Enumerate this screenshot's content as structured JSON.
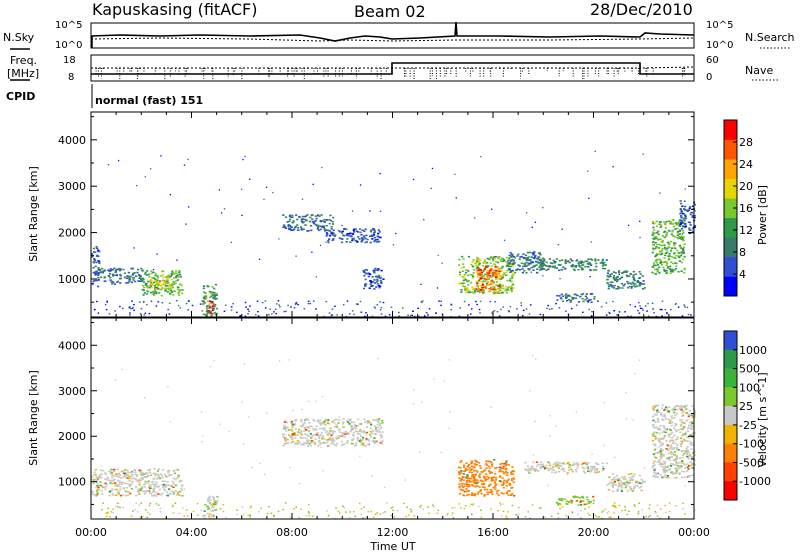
{
  "header": {
    "title": "Kapuskasing (fitACF)",
    "beam": "Beam 02",
    "date": "28/Dec/2010"
  },
  "strip_labels": {
    "nsky": "N.Sky",
    "nsky_top": "10^5",
    "nsky_bottom": "10^0",
    "nsearch": "N.Search",
    "nsearch_top": "10^5",
    "nsearch_bottom": "10^0",
    "freq_line1": "Freq.",
    "freq_line2": "[MHz]",
    "freq_top": "18",
    "freq_bottom": "8",
    "nave": "Nave",
    "nave_top": "60",
    "nave_bottom": "0",
    "cpid": "CPID",
    "cpid_value": "normal (fast) 151"
  },
  "chart_data": [
    {
      "type": "heatmap",
      "name_on_chart": "power-panel",
      "xlabel": "Time UT",
      "ylabel": "Slant Range [km]",
      "x_ticks": [
        "00:00",
        "04:00",
        "08:00",
        "12:00",
        "16:00",
        "20:00",
        "00:00"
      ],
      "x_range_hours": [
        0,
        24
      ],
      "y_ticks": [
        1000,
        2000,
        3000,
        4000
      ],
      "ylim": [
        180,
        4600
      ],
      "colorbar": {
        "label": "Power [dB]",
        "ticks": [
          4,
          8,
          12,
          16,
          20,
          24,
          28
        ],
        "range": [
          0,
          32
        ],
        "colors": [
          "#0000ff",
          "#2f4fd4",
          "#3a7a6a",
          "#2e9a48",
          "#7ac82d",
          "#e8d400",
          "#ffa500",
          "#ff5500",
          "#ff0000"
        ]
      },
      "echo_regions": [
        {
          "t0": 0.0,
          "t1": 0.3,
          "r0": 850,
          "r1": 1800,
          "value": 6
        },
        {
          "t0": 0.3,
          "t1": 2.0,
          "r0": 900,
          "r1": 1250,
          "value": 8
        },
        {
          "t0": 2.0,
          "t1": 3.6,
          "r0": 650,
          "r1": 1200,
          "value": 14
        },
        {
          "t0": 2.3,
          "t1": 3.2,
          "r0": 800,
          "r1": 1050,
          "value": 20
        },
        {
          "t0": 4.4,
          "t1": 5.0,
          "r0": 200,
          "r1": 900,
          "value": 12
        },
        {
          "t0": 4.55,
          "t1": 4.85,
          "r0": 250,
          "r1": 550,
          "value": 28
        },
        {
          "t0": 7.6,
          "t1": 9.6,
          "r0": 2050,
          "r1": 2400,
          "value": 8
        },
        {
          "t0": 9.3,
          "t1": 11.5,
          "r0": 1800,
          "r1": 2100,
          "value": 6
        },
        {
          "t0": 10.8,
          "t1": 11.6,
          "r0": 800,
          "r1": 1250,
          "value": 6
        },
        {
          "t0": 14.6,
          "t1": 16.8,
          "r0": 700,
          "r1": 1500,
          "value": 16
        },
        {
          "t0": 15.3,
          "t1": 16.3,
          "r0": 750,
          "r1": 1300,
          "value": 26
        },
        {
          "t0": 16.5,
          "t1": 18.0,
          "r0": 1150,
          "r1": 1600,
          "value": 8
        },
        {
          "t0": 17.2,
          "t1": 20.5,
          "r0": 1200,
          "r1": 1450,
          "value": 10
        },
        {
          "t0": 18.5,
          "t1": 20.0,
          "r0": 500,
          "r1": 700,
          "value": 8
        },
        {
          "t0": 20.5,
          "t1": 22.0,
          "r0": 800,
          "r1": 1200,
          "value": 10
        },
        {
          "t0": 22.3,
          "t1": 23.6,
          "r0": 1100,
          "r1": 2300,
          "value": 14
        },
        {
          "t0": 23.4,
          "t1": 24.0,
          "r0": 2000,
          "r1": 2700,
          "value": 6
        }
      ]
    },
    {
      "type": "heatmap",
      "name_on_chart": "velocity-panel",
      "xlabel": "Time UT",
      "ylabel": "Slant Range [km]",
      "x_ticks": [
        "00:00",
        "04:00",
        "08:00",
        "12:00",
        "16:00",
        "20:00",
        "00:00"
      ],
      "x_range_hours": [
        0,
        24
      ],
      "y_ticks": [
        1000,
        2000,
        3000,
        4000
      ],
      "ylim": [
        180,
        4600
      ],
      "colorbar": {
        "label": "Velocity [m s^-1]",
        "ticks": [
          "1000",
          "500",
          "100",
          "25",
          "-25",
          "-100",
          "-500",
          "-1000"
        ],
        "colors": [
          "#2f4fd4",
          "#2e9a48",
          "#3ab33a",
          "#7ac82d",
          "#c8c8c8",
          "#f0b400",
          "#ff8000",
          "#ff4000",
          "#ff0000"
        ]
      },
      "echo_regions": [
        {
          "t0": 0.0,
          "t1": 3.6,
          "r0": 700,
          "r1": 1300,
          "value": 0
        },
        {
          "t0": 4.4,
          "t1": 5.0,
          "r0": 200,
          "r1": 700,
          "value": 0
        },
        {
          "t0": 7.6,
          "t1": 11.6,
          "r0": 1800,
          "r1": 2400,
          "value": 0
        },
        {
          "t0": 14.6,
          "t1": 16.8,
          "r0": 700,
          "r1": 1500,
          "value": -150
        },
        {
          "t0": 17.2,
          "t1": 20.5,
          "r0": 1200,
          "r1": 1450,
          "value": 0
        },
        {
          "t0": 18.5,
          "t1": 20.0,
          "r0": 500,
          "r1": 700,
          "value": 60
        },
        {
          "t0": 20.5,
          "t1": 22.0,
          "r0": 800,
          "r1": 1200,
          "value": 0
        },
        {
          "t0": 22.3,
          "t1": 24.0,
          "r0": 1100,
          "r1": 2700,
          "value": 0
        }
      ]
    }
  ]
}
